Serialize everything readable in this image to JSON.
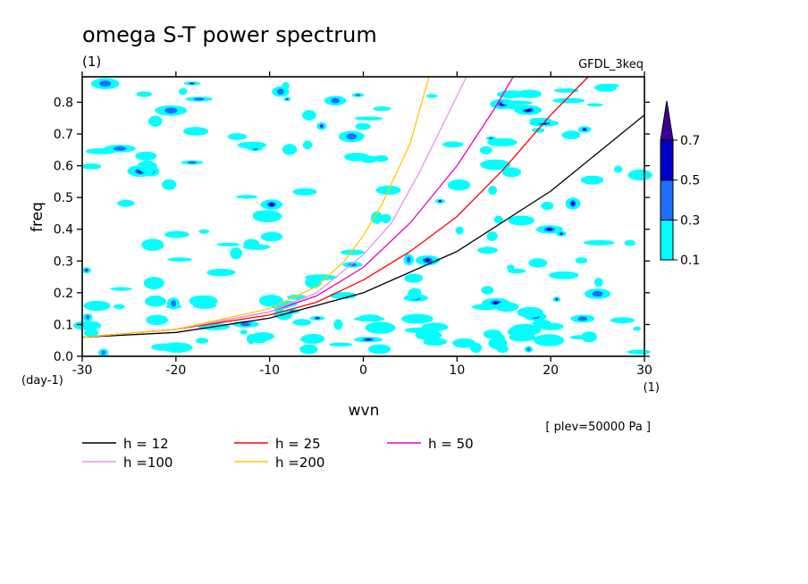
{
  "chart_data": {
    "type": "line",
    "title": "omega S-T power spectrum",
    "subtitle_left": "(1)",
    "subtitle_right": "GFDL_3keq",
    "xlabel": "wvn",
    "ylabel": "freq",
    "x_unit": "(1)",
    "y_unit": "(day-1)",
    "level_note": "[ plev=50000 Pa ]",
    "xlim": [
      -30,
      30
    ],
    "ylim": [
      0,
      0.88
    ],
    "x_ticks": [
      -30,
      -20,
      -10,
      0,
      10,
      20,
      30
    ],
    "x_tick_labels": [
      "-30",
      "-20",
      "-10",
      "0",
      "10",
      "20",
      "30"
    ],
    "y_ticks": [
      0,
      0.1,
      0.2,
      0.3,
      0.4,
      0.5,
      0.6,
      0.7,
      0.8
    ],
    "y_tick_labels": [
      "0.0",
      "0.1",
      "0.2",
      "0.3",
      "0.4",
      "0.5",
      "0.6",
      "0.7",
      "0.8"
    ],
    "colorbar": {
      "levels": [
        "0.1",
        "0.3",
        "0.5",
        "0.7"
      ],
      "colors": [
        "#00ffff",
        "#1e6eff",
        "#0000c8",
        "#3c0096"
      ]
    },
    "contour_fill_colors": [
      "#00ffff",
      "#1e6eff",
      "#0000c8"
    ],
    "series": [
      {
        "name": "h = 12",
        "color": "#000000",
        "x": [
          -30,
          -20,
          -10,
          0,
          10,
          20,
          30
        ],
        "y": [
          0.06,
          0.075,
          0.12,
          0.2,
          0.33,
          0.52,
          0.76
        ]
      },
      {
        "name": "h = 25",
        "color": "#ff0000",
        "x": [
          -30,
          -20,
          -10,
          -5,
          0,
          5,
          10,
          15,
          20,
          24
        ],
        "y": [
          0.06,
          0.085,
          0.13,
          0.17,
          0.24,
          0.33,
          0.44,
          0.59,
          0.76,
          0.88
        ]
      },
      {
        "name": "h = 50",
        "color": "#e600c8",
        "x": [
          -30,
          -20,
          -10,
          -5,
          0,
          5,
          10,
          14,
          16
        ],
        "y": [
          0.06,
          0.085,
          0.14,
          0.19,
          0.28,
          0.42,
          0.6,
          0.78,
          0.88
        ]
      },
      {
        "name": "h =100",
        "color": "#e696e6",
        "x": [
          -30,
          -20,
          -10,
          -5,
          0,
          3,
          6,
          9,
          11
        ],
        "y": [
          0.06,
          0.085,
          0.14,
          0.2,
          0.32,
          0.42,
          0.58,
          0.76,
          0.88
        ]
      },
      {
        "name": "h =200",
        "color": "#ffc800",
        "x": [
          -30,
          -20,
          -10,
          -5,
          -2,
          0,
          2,
          5,
          7
        ],
        "y": [
          0.06,
          0.085,
          0.15,
          0.22,
          0.3,
          0.38,
          0.48,
          0.67,
          0.88
        ]
      }
    ],
    "legend_placement": "bottom-left",
    "grid": false
  }
}
